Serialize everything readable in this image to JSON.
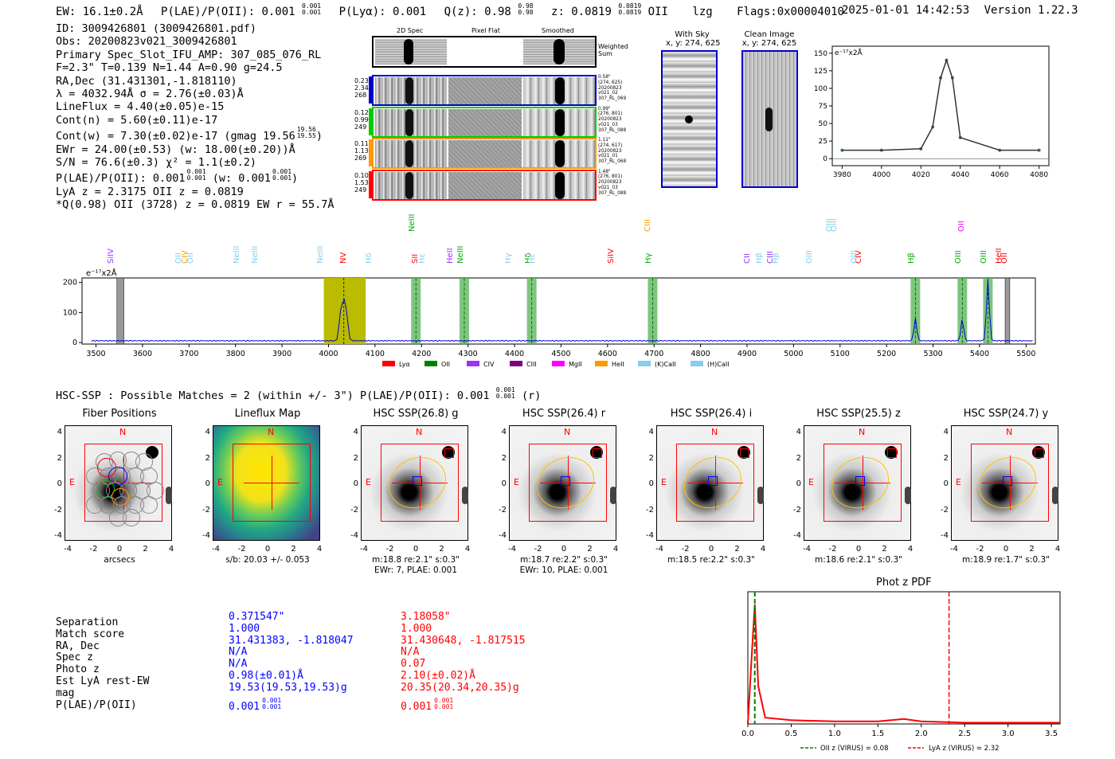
{
  "header": {
    "ew": "EW: 16.1±0.2Å",
    "plae": "P(LAE)/P(OII): 0.001",
    "plae_sup": "0.001",
    "plae_sub": "0.001",
    "plya": "P(Lyα): 0.001",
    "qz": "Q(z): 0.98",
    "qz_sup": "0.98",
    "qz_sub": "0.98",
    "z": "z: 0.0819",
    "z_sup": "0.0819",
    "z_sub": "0.0819",
    "z_line": "OII",
    "lzg": "lzg",
    "flags": "Flags:0x00004010",
    "datetime": "2025-01-01 14:42:53",
    "version": "Version 1.22.3"
  },
  "info": {
    "lines": [
      "ID: 3009426801 (3009426801.pdf)",
      "Obs: 20200823v021_3009426801",
      "Primary Spec_Slot_IFU_AMP: 307_085_076_RL",
      "F=2.3\"  T=0.139  N=1.44  A=0.90  g=24.5",
      "RA,Dec (31.431301,-1.818110)",
      "λ = 4032.94Å  σ = 2.76(±0.03)Å",
      "LineFlux = 4.40(±0.05)e-15",
      "Cont(n) = 5.60(±0.11)e-17",
      "Cont(w) = 7.30(±0.02)e-17 (gmag 19.56",
      "EWr = 24.00(±0.53)  (w: 18.00(±0.20))Å",
      "S/N = 76.6(±0.3)  χ² = 1.1(±0.2)",
      "P(LAE)/P(OII): 0.001",
      "LyA z = 2.3175  OII z = 0.0819",
      "*Q(0.98) OII (3728) z = 0.0819  EW r = 55.7Å"
    ],
    "gmag_sup": "19.56",
    "gmag_sub": "19.55",
    "plae_w": "(w: 0.001",
    "plae_frac": "0.001"
  },
  "cutouts": {
    "col_labels": [
      "2D Spec",
      "Pixel Flat",
      "Smoothed"
    ],
    "weighted_sum": "Weighted Sum",
    "rows": [
      {
        "stats": [
          "0.23",
          "2.34",
          "268"
        ],
        "meta": [
          "0.58\"",
          "(274, 625)",
          "20200823",
          "v021_02",
          "307_RL_069"
        ],
        "color": "#0000cc"
      },
      {
        "stats": [
          "0.12",
          "0.99",
          "249"
        ],
        "meta": [
          "0.99\"",
          "(276, 801)",
          "20200823",
          "v021_03",
          "307_RL_088"
        ],
        "color": "#00cc00"
      },
      {
        "stats": [
          "0.11",
          "1.13",
          "269"
        ],
        "meta": [
          "1.11\"",
          "(274, 617)",
          "20200823",
          "v021_01",
          "307_RL_068"
        ],
        "color": "#ff9900"
      },
      {
        "stats": [
          "0.10",
          "1.53",
          "249"
        ],
        "meta": [
          "1.48\"",
          "(276, 801)",
          "20200823",
          "v021_03",
          "307_RL_088"
        ],
        "color": "#ff0000"
      }
    ],
    "with_sky_title": "With Sky",
    "with_sky_xy": "x, y: 274, 625",
    "clean_title": "Clean Image",
    "clean_xy": "x, y: 274, 625"
  },
  "zoom_chart": {
    "unit_label": "e⁻¹⁷x2Å",
    "x_ticks": [
      "3980",
      "4000",
      "4020",
      "4040",
      "4060",
      "4080"
    ],
    "y_ticks": [
      "0",
      "25",
      "50",
      "75",
      "100",
      "125",
      "150"
    ]
  },
  "spectrum": {
    "unit_label": "e⁻¹⁷x2Å",
    "x_ticks": [
      "3500",
      "3600",
      "3700",
      "3800",
      "3900",
      "4000",
      "4100",
      "4200",
      "4300",
      "4400",
      "4500",
      "4600",
      "4700",
      "4800",
      "4900",
      "5000",
      "5100",
      "5200",
      "5300",
      "5400",
      "5500"
    ],
    "y_ticks": [
      "0",
      "100",
      "200"
    ],
    "line_labels": [
      {
        "text": "SiIV",
        "wl": 3540,
        "color": "#9b30ff"
      },
      {
        "text": "OII",
        "wl": 3685,
        "color": "#87ceeb"
      },
      {
        "text": "CIV",
        "wl": 3700,
        "color": "#ff9900"
      },
      {
        "text": "OII",
        "wl": 3712,
        "color": "#87ceeb"
      },
      {
        "text": "NeIII",
        "wl": 3810,
        "color": "#87ceeb"
      },
      {
        "text": "NeIII",
        "wl": 3850,
        "color": "#87ceeb"
      },
      {
        "text": "NeIII",
        "wl": 3990,
        "color": "#87ceeb"
      },
      {
        "text": "NV",
        "wl": 4040,
        "color": "#ff0000"
      },
      {
        "text": "Hδ",
        "wl": 4095,
        "color": "#87ceeb"
      },
      {
        "text": "NeIII",
        "wl": 4188,
        "color": "#00aa00"
      },
      {
        "text": "SII",
        "wl": 4195,
        "color": "#ff0000"
      },
      {
        "text": "Hε",
        "wl": 4210,
        "color": "#87ceeb"
      },
      {
        "text": "HeII",
        "wl": 4270,
        "color": "#9b30ff"
      },
      {
        "text": "NeIII",
        "wl": 4292,
        "color": "#00aa00"
      },
      {
        "text": "Hγ",
        "wl": 4395,
        "color": "#87ceeb"
      },
      {
        "text": "Hδ",
        "wl": 4437,
        "color": "#00aa00"
      },
      {
        "text": "Hε",
        "wl": 4447,
        "color": "#87ceeb"
      },
      {
        "text": "SiIV",
        "wl": 4615,
        "color": "#ff0000"
      },
      {
        "text": "CIII",
        "wl": 4695,
        "color": "#ff9900"
      },
      {
        "text": "Hγ",
        "wl": 4697,
        "color": "#00aa00"
      },
      {
        "text": "CII",
        "wl": 4908,
        "color": "#9b30ff"
      },
      {
        "text": "Hβ",
        "wl": 4935,
        "color": "#87ceeb"
      },
      {
        "text": "CIII",
        "wl": 4958,
        "color": "#9b30ff"
      },
      {
        "text": "Hβ",
        "wl": 4970,
        "color": "#87ceeb"
      },
      {
        "text": "OIII",
        "wl": 5043,
        "color": "#87ceeb"
      },
      {
        "text": "OIII",
        "wl": 5085,
        "color": "#87ceeb"
      },
      {
        "text": "OIII",
        "wl": 5095,
        "color": "#87ceeb"
      },
      {
        "text": "CIV",
        "wl": 5148,
        "color": "#ff0000"
      },
      {
        "text": "OIII",
        "wl": 5138,
        "color": "#87ceeb"
      },
      {
        "text": "Hβ",
        "wl": 5262,
        "color": "#00aa00"
      },
      {
        "text": "OIII",
        "wl": 5363,
        "color": "#00aa00"
      },
      {
        "text": "OII",
        "wl": 5370,
        "color": "#ff00ff"
      },
      {
        "text": "OIII",
        "wl": 5418,
        "color": "#00aa00"
      },
      {
        "text": "HeII",
        "wl": 5450,
        "color": "#ff0000"
      },
      {
        "text": "OII",
        "wl": 5462,
        "color": "#ff0000"
      }
    ],
    "legend": [
      {
        "label": "Lyα",
        "color": "#ff0000"
      },
      {
        "label": "OII",
        "color": "#008000"
      },
      {
        "label": "CIV",
        "color": "#9b30ff"
      },
      {
        "label": "CIII",
        "color": "#800080"
      },
      {
        "label": "MgII",
        "color": "#ff00ff"
      },
      {
        "label": "HeII",
        "color": "#ff9900"
      },
      {
        "label": "(K)CaII",
        "color": "#87ceeb"
      },
      {
        "label": "(H)CaII",
        "color": "#87ceeb"
      }
    ]
  },
  "hsc": {
    "title": "HSC-SSP : Possible Matches = 2 (within +/- 3\")  P(LAE)/P(OII): 0.001",
    "title_sup": "0.001",
    "title_sub": "0.001",
    "title_tail": "(r)",
    "panels": [
      {
        "title": "Fiber Positions",
        "cap1": "arcsecs",
        "cap2": ""
      },
      {
        "title": "Lineflux Map",
        "cap1": "s/b: 20.03 +/- 0.053",
        "cap2": ""
      },
      {
        "title": "HSC SSP(26.8) g",
        "cap1": "m:18.8  re:2.1\"  s:0.3\"",
        "cap2": "EWr: 7, PLAE: 0.001"
      },
      {
        "title": "HSC SSP(26.4) r",
        "cap1": "m:18.7  re:2.2\"  s:0.3\"",
        "cap2": "EWr: 10, PLAE: 0.001"
      },
      {
        "title": "HSC SSP(26.4) i",
        "cap1": "m:18.5  re:2.2\"  s:0.3\"",
        "cap2": ""
      },
      {
        "title": "HSC SSP(25.5) z",
        "cap1": "m:18.6  re:2.1\"  s:0.3\"",
        "cap2": ""
      },
      {
        "title": "HSC SSP(24.7) y",
        "cap1": "m:18.9  re:1.7\"  s:0.3\"",
        "cap2": ""
      }
    ],
    "y_ticks": [
      "4",
      "2",
      "0",
      "-2",
      "-4"
    ],
    "x_ticks": [
      "-4",
      "-2",
      "0",
      "2",
      "4"
    ],
    "n_label": "N",
    "e_label": "E"
  },
  "match_table": {
    "labels": [
      "Separation",
      "Match score",
      "RA, Dec",
      "Spec z",
      "Photo z",
      "Est LyA rest-EW",
      "mag",
      "P(LAE)/P(OII)"
    ],
    "col_blue": [
      "0.371547\"",
      "1.000",
      "31.431383, -1.818047",
      "N/A",
      "N/A",
      "0.98(±0.01)Å",
      "19.53(19.53,19.53)g",
      "0.001"
    ],
    "col_red": [
      "3.18058\"",
      "1.000",
      "31.430648, -1.817515",
      "N/A",
      "0.07",
      "2.10(±0.02)Å",
      "20.35(20.34,20.35)g",
      "0.001"
    ],
    "frac_sup": "0.001",
    "frac_sub": "0.001"
  },
  "photz": {
    "title": "Phot z PDF",
    "x_ticks": [
      "0.0",
      "0.5",
      "1.0",
      "1.5",
      "2.0",
      "2.5",
      "3.0",
      "3.5"
    ],
    "legend_green": "OII z (VIRUS) = 0.08",
    "legend_red": "LyA z (VIRUS) = 2.32",
    "oii_z": 0.08,
    "lya_z": 2.32
  },
  "chart_data": [
    {
      "type": "line",
      "title": "",
      "xlabel": "",
      "ylabel": "e⁻¹⁷x2Å",
      "xlim": [
        3975,
        4085
      ],
      "ylim": [
        -10,
        160
      ],
      "series": [
        {
          "name": "gaussian fit",
          "x": [
            3980,
            4000,
            4020,
            4026,
            4030,
            4033,
            4036,
            4040,
            4060,
            4080
          ],
          "y": [
            12,
            12,
            14,
            45,
            115,
            140,
            115,
            30,
            12,
            12
          ]
        }
      ]
    },
    {
      "type": "line",
      "title": "",
      "xlabel": "",
      "ylabel": "e⁻¹⁷x2Å",
      "xlim": [
        3470,
        5520
      ],
      "ylim": [
        -5,
        215
      ],
      "series": [
        {
          "name": "spectrum",
          "x": [
            3500,
            3600,
            3800,
            4000,
            4025,
            4033,
            4040,
            4100,
            4188,
            4300,
            4437,
            4600,
            4697,
            4900,
            5100,
            5262,
            5363,
            5418,
            5500
          ],
          "y": [
            5,
            6,
            5,
            6,
            60,
            140,
            40,
            8,
            22,
            9,
            28,
            9,
            35,
            9,
            9,
            80,
            78,
            210,
            9
          ]
        }
      ]
    },
    {
      "type": "line",
      "title": "Phot z PDF",
      "xlabel": "",
      "ylabel": "",
      "xlim": [
        0,
        3.6
      ],
      "ylim": [
        0,
        1
      ],
      "series": [
        {
          "name": "pdf",
          "x": [
            0.0,
            0.05,
            0.08,
            0.12,
            0.2,
            0.5,
            1.0,
            1.5,
            1.8,
            2.0,
            2.5,
            3.0,
            3.6
          ],
          "y": [
            0.0,
            0.6,
            0.95,
            0.3,
            0.05,
            0.03,
            0.02,
            0.02,
            0.04,
            0.02,
            0.01,
            0.01,
            0.01
          ]
        }
      ]
    }
  ]
}
